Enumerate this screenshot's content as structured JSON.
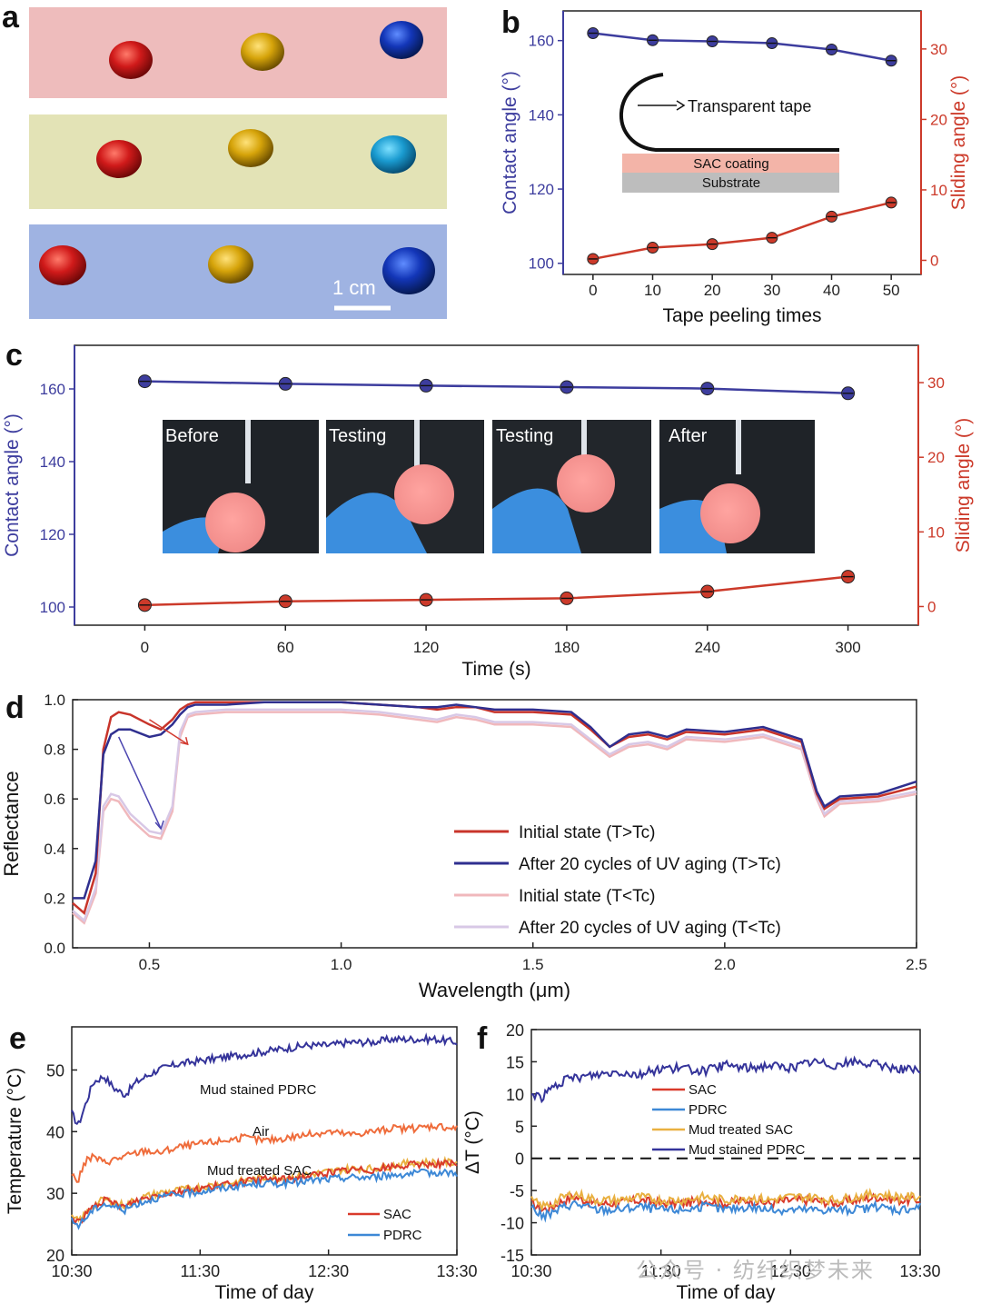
{
  "panels": {
    "a": {
      "label": "a",
      "scale": "1 cm",
      "strip_colors": [
        "#eebcbc",
        "#e3e3b6",
        "#9fb3e2"
      ],
      "droplet_colors": [
        "#d01a1a",
        "#dba80a",
        "#1336b8"
      ]
    },
    "b": {
      "label": "b"
    },
    "c": {
      "label": "c"
    },
    "d": {
      "label": "d"
    },
    "e": {
      "label": "e"
    },
    "f": {
      "label": "f"
    }
  },
  "inset_b": {
    "tape_label": "Transparent tape",
    "coating_label": "SAC coating",
    "substrate_label": "Substrate"
  },
  "inset_c": {
    "photos": [
      "Before",
      "Testing",
      "Testing",
      "After"
    ]
  },
  "watermark": "公众号 · 纺纤织梦未来",
  "colors": {
    "contact": "#3d3d9e",
    "sliding": "#cc3a2a"
  },
  "chart_data": [
    {
      "id": "b",
      "type": "line",
      "xlabel": "Tape peeling times",
      "ylabel": "Contact angle (°)",
      "y2label": "Sliding angle (°)",
      "x": [
        0,
        10,
        20,
        30,
        40,
        50
      ],
      "x_ticks": [
        "0",
        "10",
        "20",
        "30",
        "40",
        "50"
      ],
      "xlim": [
        -5,
        55
      ],
      "ylim": [
        97,
        168
      ],
      "y2lim": [
        -2,
        35.4
      ],
      "y_ticks": [
        100,
        120,
        140,
        160
      ],
      "y2_ticks": [
        0,
        10,
        20,
        30
      ],
      "series": [
        {
          "axis": "left",
          "color": "#3d3d9e",
          "values": [
            162,
            160.1,
            159.8,
            159.3,
            157.6,
            154.6
          ]
        },
        {
          "axis": "right",
          "color": "#cc3a2a",
          "values": [
            0.2,
            1.8,
            2.3,
            3.2,
            6.2,
            8.2
          ]
        }
      ]
    },
    {
      "id": "c",
      "type": "line",
      "xlabel": "Time (s)",
      "ylabel": "Contact angle (°)",
      "y2label": "Sliding angle (°)",
      "x": [
        0,
        60,
        120,
        180,
        240,
        300
      ],
      "x_ticks": [
        "0",
        "60",
        "120",
        "180",
        "240",
        "300"
      ],
      "xlim": [
        -30,
        330
      ],
      "ylim": [
        95,
        172
      ],
      "y2lim": [
        -2.5,
        35
      ],
      "y_ticks": [
        100,
        120,
        140,
        160
      ],
      "y2_ticks": [
        0,
        10,
        20,
        30
      ],
      "series": [
        {
          "axis": "left",
          "color": "#3d3d9e",
          "values": [
            162.1,
            161.4,
            160.9,
            160.5,
            160.1,
            158.8
          ]
        },
        {
          "axis": "right",
          "color": "#cc3a2a",
          "values": [
            0.2,
            0.7,
            0.9,
            1.1,
            2.0,
            4.0
          ]
        }
      ]
    },
    {
      "id": "d",
      "type": "line",
      "xlabel": "Wavelength (μm)",
      "ylabel": "Reflectance",
      "xlim": [
        0.3,
        2.5
      ],
      "ylim": [
        0,
        1
      ],
      "x_ticks": [
        "0.5",
        "1.0",
        "1.5",
        "2.0",
        "2.5"
      ],
      "x_tick_vals": [
        0.5,
        1.0,
        1.5,
        2.0,
        2.5
      ],
      "y_ticks": [
        "0.0",
        "0.2",
        "0.4",
        "0.6",
        "0.8",
        "1.0"
      ],
      "y_tick_vals": [
        0,
        0.2,
        0.4,
        0.6,
        0.8,
        1.0
      ],
      "x": [
        0.3,
        0.33,
        0.36,
        0.38,
        0.4,
        0.42,
        0.45,
        0.5,
        0.53,
        0.56,
        0.58,
        0.6,
        0.62,
        0.7,
        0.8,
        0.9,
        1.0,
        1.1,
        1.2,
        1.25,
        1.3,
        1.35,
        1.4,
        1.5,
        1.6,
        1.65,
        1.7,
        1.75,
        1.8,
        1.85,
        1.9,
        2.0,
        2.1,
        2.2,
        2.24,
        2.26,
        2.3,
        2.4,
        2.5
      ],
      "series": [
        {
          "name": "Initial state (T>Tc)",
          "color": "#c8342a",
          "values": [
            0.18,
            0.14,
            0.3,
            0.8,
            0.93,
            0.95,
            0.94,
            0.9,
            0.88,
            0.92,
            0.96,
            0.98,
            0.99,
            0.99,
            0.99,
            0.99,
            0.99,
            0.98,
            0.97,
            0.96,
            0.97,
            0.97,
            0.95,
            0.95,
            0.94,
            0.88,
            0.81,
            0.85,
            0.86,
            0.84,
            0.87,
            0.86,
            0.88,
            0.83,
            0.62,
            0.56,
            0.6,
            0.61,
            0.65
          ]
        },
        {
          "name": "After 20 cycles of UV aging (T>Tc)",
          "color": "#2f2f8f",
          "values": [
            0.2,
            0.2,
            0.35,
            0.78,
            0.86,
            0.88,
            0.88,
            0.85,
            0.86,
            0.9,
            0.94,
            0.97,
            0.98,
            0.98,
            0.99,
            0.99,
            0.99,
            0.98,
            0.97,
            0.97,
            0.98,
            0.97,
            0.96,
            0.96,
            0.95,
            0.89,
            0.81,
            0.86,
            0.87,
            0.85,
            0.88,
            0.87,
            0.89,
            0.84,
            0.63,
            0.57,
            0.61,
            0.62,
            0.67
          ]
        },
        {
          "name": "Initial state (T<Tc)",
          "color": "#f0b8bc",
          "values": [
            0.14,
            0.1,
            0.22,
            0.55,
            0.6,
            0.59,
            0.52,
            0.45,
            0.44,
            0.55,
            0.85,
            0.93,
            0.94,
            0.95,
            0.95,
            0.95,
            0.95,
            0.94,
            0.92,
            0.91,
            0.93,
            0.92,
            0.9,
            0.9,
            0.89,
            0.83,
            0.77,
            0.81,
            0.82,
            0.8,
            0.84,
            0.83,
            0.85,
            0.8,
            0.6,
            0.53,
            0.58,
            0.59,
            0.62
          ]
        },
        {
          "name": "After 20 cycles of UV aging (T<Tc)",
          "color": "#d8c8e6",
          "values": [
            0.15,
            0.11,
            0.24,
            0.57,
            0.62,
            0.61,
            0.54,
            0.47,
            0.46,
            0.57,
            0.87,
            0.94,
            0.95,
            0.96,
            0.96,
            0.96,
            0.96,
            0.95,
            0.93,
            0.92,
            0.94,
            0.93,
            0.91,
            0.91,
            0.9,
            0.84,
            0.78,
            0.82,
            0.83,
            0.81,
            0.85,
            0.84,
            0.86,
            0.81,
            0.61,
            0.54,
            0.59,
            0.6,
            0.63
          ]
        }
      ]
    },
    {
      "id": "e",
      "type": "line",
      "xlabel": "Time of day",
      "ylabel": "Temperature (°C)",
      "xlim": [
        0,
        180
      ],
      "ylim": [
        20,
        57
      ],
      "x_ticks": [
        "10:30",
        "11:30",
        "12:30",
        "13:30"
      ],
      "x_tick_vals": [
        0,
        60,
        120,
        180
      ],
      "y_ticks": [
        "20",
        "30",
        "40",
        "50"
      ],
      "y_tick_vals": [
        20,
        30,
        40,
        50
      ],
      "x": [
        0,
        3,
        6,
        10,
        15,
        20,
        25,
        30,
        35,
        40,
        50,
        60,
        70,
        80,
        90,
        100,
        110,
        120,
        130,
        140,
        150,
        160,
        170,
        180
      ],
      "series": [
        {
          "name": "Mud stained PDRC",
          "color": "#34339a",
          "values": [
            43,
            41,
            44,
            48,
            49,
            47,
            46,
            48,
            49,
            50,
            51,
            51.5,
            52,
            52.5,
            53,
            53.5,
            54,
            54,
            54.5,
            54.5,
            55,
            55,
            55,
            54.5
          ]
        },
        {
          "name": "Air",
          "color": "#ef6c3b",
          "values": [
            33,
            32,
            35,
            36,
            35,
            35.5,
            36,
            36.5,
            37,
            36.5,
            37.5,
            38,
            38.5,
            39,
            38.5,
            39,
            39.5,
            40,
            39.5,
            40,
            40.5,
            40.5,
            41,
            40.5
          ]
        },
        {
          "name": "Mud treated SAC",
          "color": "#e9b040",
          "values": [
            26,
            25.5,
            26.5,
            28,
            29,
            28.5,
            28,
            29,
            29.5,
            30,
            30.5,
            31,
            31.5,
            32,
            32.5,
            32.5,
            33,
            33.5,
            34,
            34,
            34.5,
            35,
            35,
            35
          ]
        },
        {
          "name": "SAC",
          "color": "#d93a2b",
          "values": [
            26,
            25.3,
            26.3,
            27.8,
            28.8,
            28.3,
            27.8,
            28.8,
            29.3,
            29.8,
            30.3,
            30.8,
            31.3,
            31.8,
            32.3,
            32.3,
            32.8,
            33.3,
            33.8,
            33.8,
            34.3,
            34.6,
            34.8,
            34.7
          ]
        },
        {
          "name": "PDRC",
          "color": "#3d88d6",
          "values": [
            25.5,
            24.8,
            25.8,
            27.3,
            28.3,
            27.8,
            27.3,
            28.3,
            28.8,
            29.3,
            29.8,
            30.3,
            30.8,
            31.3,
            31.6,
            31.6,
            32,
            32.3,
            32.6,
            32.6,
            33,
            33.2,
            33.4,
            33.3
          ]
        }
      ]
    },
    {
      "id": "f",
      "type": "line",
      "xlabel": "Time of day",
      "ylabel": "ΔT (°C)",
      "xlim": [
        0,
        180
      ],
      "ylim": [
        -15,
        20
      ],
      "x_ticks": [
        "10:30",
        "11:30",
        "12:30",
        "13:30"
      ],
      "x_tick_vals": [
        0,
        60,
        120,
        180
      ],
      "y_ticks": [
        "-15",
        "-10",
        "-5",
        "0",
        "5",
        "10",
        "15",
        "20"
      ],
      "y_tick_vals": [
        -15,
        -10,
        -5,
        0,
        5,
        10,
        15,
        20
      ],
      "x": [
        0,
        5,
        10,
        15,
        20,
        30,
        40,
        50,
        60,
        70,
        80,
        90,
        100,
        110,
        120,
        130,
        140,
        150,
        160,
        170,
        180
      ],
      "series": [
        {
          "name": "SAC",
          "color": "#d93a2b",
          "values": [
            -7,
            -8,
            -7.5,
            -6.5,
            -6,
            -7,
            -7,
            -6.5,
            -7,
            -7,
            -6.5,
            -7,
            -6.5,
            -7,
            -6.5,
            -6.5,
            -7,
            -6.5,
            -6,
            -6.5,
            -6.5
          ]
        },
        {
          "name": "PDRC",
          "color": "#3d88d6",
          "values": [
            -7.5,
            -9,
            -8.5,
            -7.5,
            -7,
            -8,
            -8,
            -7.5,
            -8,
            -8,
            -7.5,
            -8,
            -7.5,
            -8,
            -8,
            -8,
            -8,
            -8,
            -7.5,
            -8,
            -7.5
          ]
        },
        {
          "name": "Mud treated SAC",
          "color": "#e9b040",
          "values": [
            -6.5,
            -7.5,
            -7,
            -6,
            -5.5,
            -6.5,
            -6.5,
            -6,
            -6.5,
            -6.5,
            -6,
            -6.5,
            -6,
            -6.5,
            -6,
            -6,
            -6.5,
            -6,
            -5.5,
            -6,
            -6
          ]
        },
        {
          "name": "Mud stained PDRC",
          "color": "#34339a",
          "values": [
            10,
            9.5,
            11,
            12,
            12.5,
            13,
            13.5,
            13,
            14,
            14,
            13.5,
            14.5,
            14,
            14.5,
            14,
            15,
            14.5,
            15,
            14.5,
            14,
            13.5
          ]
        }
      ]
    }
  ],
  "plot_text": {
    "e_labels": [
      "Mud stained PDRC",
      "Air",
      "Mud treated SAC"
    ],
    "f_zero_line": true
  }
}
